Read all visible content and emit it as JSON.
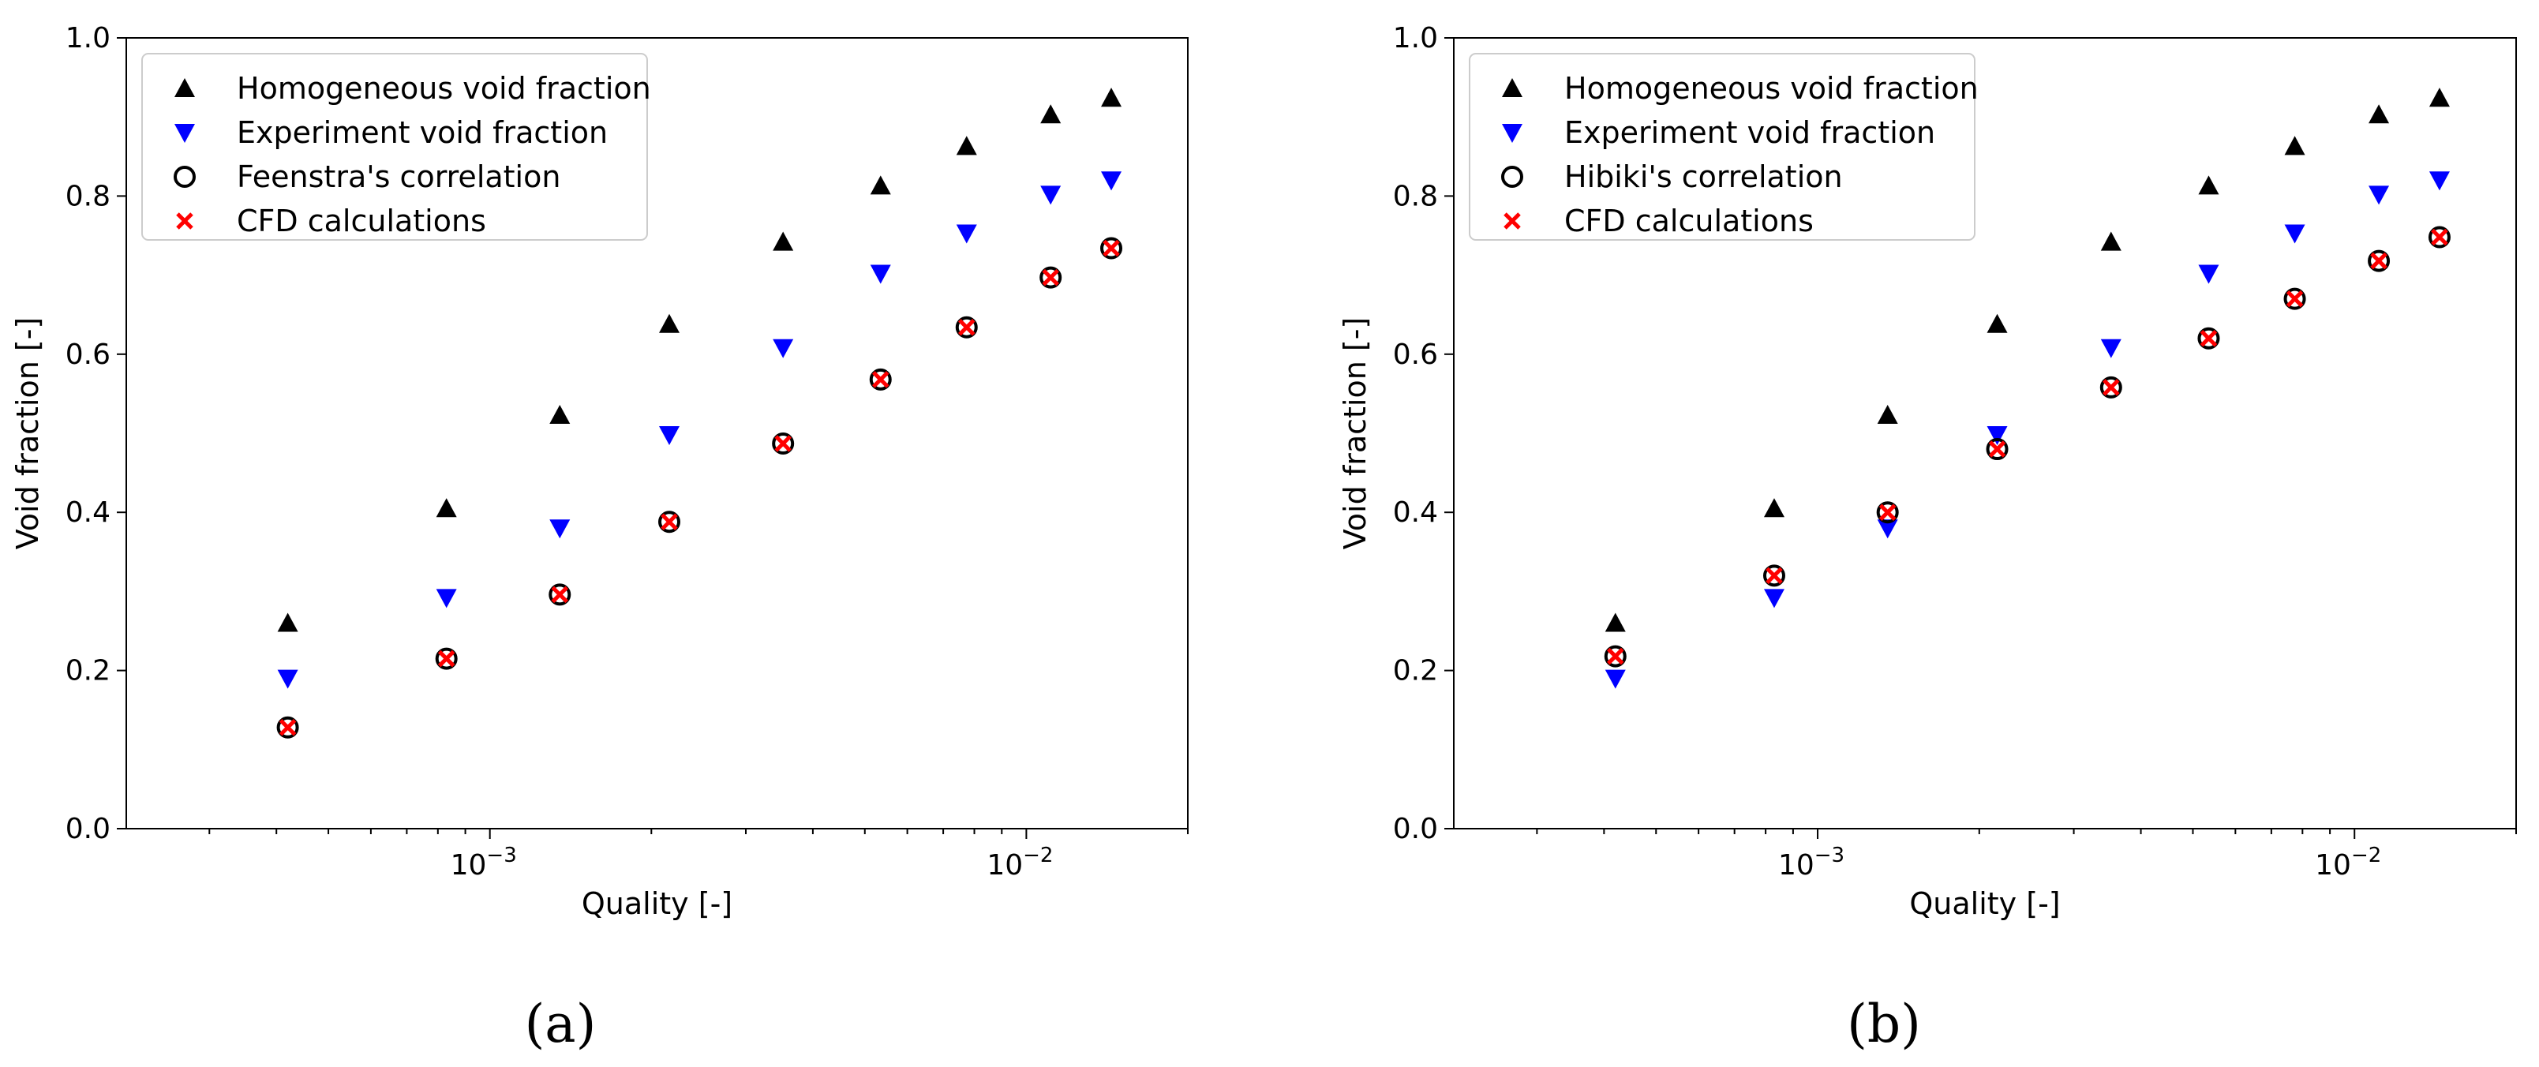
{
  "colors": {
    "homogeneous": "#000000",
    "experiment": "#0000ff",
    "correlation_edge": "#000000",
    "cfd": "#ff0000",
    "axes": "#000000",
    "legend_border": "#cccccc"
  },
  "chart_data": [
    {
      "panel_label": "(a)",
      "type": "scatter",
      "xscale": "log",
      "xlim": [
        0.00021,
        0.02
      ],
      "ylim": [
        0.0,
        1.0
      ],
      "xlabel": "Quality [-]",
      "ylabel": "Void fraction [-]",
      "x_major_ticks": [
        {
          "value": 0.001,
          "base": "10",
          "exp": "−3"
        },
        {
          "value": 0.01,
          "base": "10",
          "exp": "−2"
        }
      ],
      "y_ticks": [
        {
          "value": 0.0,
          "label": "0.0"
        },
        {
          "value": 0.2,
          "label": "0.2"
        },
        {
          "value": 0.4,
          "label": "0.4"
        },
        {
          "value": 0.6,
          "label": "0.6"
        },
        {
          "value": 0.8,
          "label": "0.8"
        },
        {
          "value": 1.0,
          "label": "1.0"
        }
      ],
      "legend_position": "top-left",
      "x": [
        0.00042,
        0.00083,
        0.00135,
        0.00216,
        0.00352,
        0.00535,
        0.00774,
        0.0111,
        0.0144
      ],
      "series": [
        {
          "name": "Homogeneous void fraction",
          "marker": "triangle-up",
          "color_key": "homogeneous",
          "values": [
            0.26,
            0.405,
            0.523,
            0.638,
            0.742,
            0.813,
            0.863,
            0.903,
            0.924
          ]
        },
        {
          "name": "Experiment void fraction",
          "marker": "triangle-down",
          "color_key": "experiment",
          "values": [
            0.19,
            0.292,
            0.38,
            0.498,
            0.608,
            0.702,
            0.753,
            0.802,
            0.82
          ]
        },
        {
          "name": "Feenstra's correlation",
          "marker": "circle-open",
          "color_key": "correlation_edge",
          "values": [
            0.128,
            0.215,
            0.296,
            0.388,
            0.487,
            0.568,
            0.634,
            0.697,
            0.734
          ]
        },
        {
          "name": "CFD calculations",
          "marker": "x",
          "color_key": "cfd",
          "values": [
            0.128,
            0.215,
            0.296,
            0.388,
            0.487,
            0.568,
            0.634,
            0.697,
            0.734
          ]
        }
      ]
    },
    {
      "panel_label": "(b)",
      "type": "scatter",
      "xscale": "log",
      "xlim": [
        0.00021,
        0.02
      ],
      "ylim": [
        0.0,
        1.0
      ],
      "xlabel": "Quality [-]",
      "ylabel": "Void fraction [-]",
      "x_major_ticks": [
        {
          "value": 0.001,
          "base": "10",
          "exp": "−3"
        },
        {
          "value": 0.01,
          "base": "10",
          "exp": "−2"
        }
      ],
      "y_ticks": [
        {
          "value": 0.0,
          "label": "0.0"
        },
        {
          "value": 0.2,
          "label": "0.2"
        },
        {
          "value": 0.4,
          "label": "0.4"
        },
        {
          "value": 0.6,
          "label": "0.6"
        },
        {
          "value": 0.8,
          "label": "0.8"
        },
        {
          "value": 1.0,
          "label": "1.0"
        }
      ],
      "legend_position": "top-left",
      "x": [
        0.00042,
        0.00083,
        0.00135,
        0.00216,
        0.00352,
        0.00535,
        0.00774,
        0.0111,
        0.0144
      ],
      "series": [
        {
          "name": "Homogeneous void fraction",
          "marker": "triangle-up",
          "color_key": "homogeneous",
          "values": [
            0.26,
            0.405,
            0.523,
            0.638,
            0.742,
            0.813,
            0.863,
            0.903,
            0.924
          ]
        },
        {
          "name": "Experiment void fraction",
          "marker": "triangle-down",
          "color_key": "experiment",
          "values": [
            0.19,
            0.292,
            0.38,
            0.498,
            0.608,
            0.702,
            0.753,
            0.802,
            0.82
          ]
        },
        {
          "name": "Hibiki's correlation",
          "marker": "circle-open",
          "color_key": "correlation_edge",
          "values": [
            0.218,
            0.32,
            0.4,
            0.48,
            0.558,
            0.62,
            0.67,
            0.718,
            0.748
          ]
        },
        {
          "name": "CFD calculations",
          "marker": "x",
          "color_key": "cfd",
          "values": [
            0.218,
            0.32,
            0.4,
            0.48,
            0.558,
            0.62,
            0.67,
            0.718,
            0.748
          ]
        }
      ]
    }
  ]
}
